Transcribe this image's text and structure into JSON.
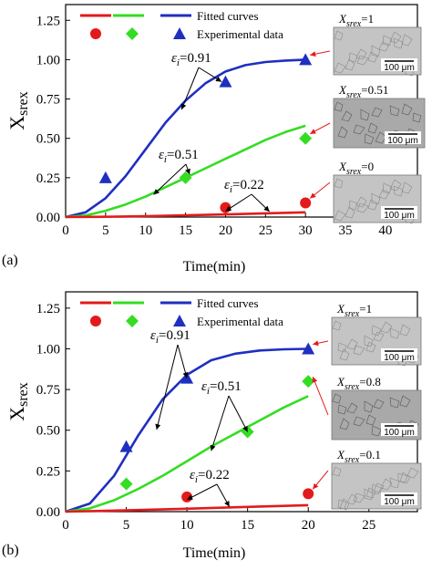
{
  "colors": {
    "low": "#e31a1c",
    "mid": "#33dd22",
    "high": "#1f2fbf",
    "arrow": "#e31a1c"
  },
  "legend": {
    "fitted": "Fitted curves",
    "experimental": "Experimental data"
  },
  "chart_data": [
    {
      "type": "line",
      "panel": "(a)",
      "xlabel": "Time(min)",
      "ylabel": "Xsrex",
      "xlim": [
        0,
        44
      ],
      "ylim": [
        0,
        1.35
      ],
      "xticks": [
        0,
        5,
        10,
        15,
        20,
        25,
        30,
        35,
        40
      ],
      "yticks": [
        0.0,
        0.25,
        0.5,
        0.75,
        1.0,
        1.25
      ],
      "curve_end": 30,
      "series": [
        {
          "key": "high",
          "strain": "εi=0.91",
          "color": "#1f2fbf",
          "marker": "triangle",
          "fit": {
            "x": [
              0,
              2.5,
              5,
              7.5,
              10,
              12.5,
              15,
              17.5,
              20,
              22.5,
              25,
              27.5,
              30
            ],
            "y": [
              0,
              0.03,
              0.12,
              0.26,
              0.43,
              0.6,
              0.74,
              0.85,
              0.925,
              0.965,
              0.985,
              0.994,
              1.0
            ]
          },
          "points": [
            {
              "x": 5,
              "y": 0.25
            },
            {
              "x": 20,
              "y": 0.86
            },
            {
              "x": 30,
              "y": 1.0
            }
          ]
        },
        {
          "key": "mid",
          "strain": "εi=0.51",
          "color": "#33dd22",
          "marker": "diamond",
          "fit": {
            "x": [
              0,
              2.5,
              5,
              7.5,
              10,
              12.5,
              15,
              17.5,
              20,
              22.5,
              25,
              27.5,
              30
            ],
            "y": [
              0,
              0.01,
              0.04,
              0.08,
              0.13,
              0.19,
              0.25,
              0.31,
              0.37,
              0.43,
              0.49,
              0.54,
              0.58
            ]
          },
          "points": [
            {
              "x": 15,
              "y": 0.25
            },
            {
              "x": 30,
              "y": 0.5
            }
          ]
        },
        {
          "key": "low",
          "strain": "εi=0.22",
          "color": "#e31a1c",
          "marker": "circle",
          "fit": {
            "x": [
              0,
              5,
              10,
              15,
              20,
              25,
              30
            ],
            "y": [
              0,
              0.002,
              0.006,
              0.011,
              0.017,
              0.024,
              0.03
            ]
          },
          "points": [
            {
              "x": 20,
              "y": 0.06
            },
            {
              "x": 30,
              "y": 0.09
            }
          ]
        }
      ],
      "micrographs": [
        {
          "label": "Xsrex=1",
          "scale": "100 μm"
        },
        {
          "label": "Xsrex=0.51",
          "scale": "100 μm"
        },
        {
          "label": "Xsrex=0",
          "scale": "100 μm"
        }
      ]
    },
    {
      "type": "line",
      "panel": "(b)",
      "xlabel": "Time(min)",
      "ylabel": "Xsrex",
      "xlim": [
        0,
        29
      ],
      "ylim": [
        0,
        1.35
      ],
      "xticks": [
        0,
        5,
        10,
        15,
        20,
        25
      ],
      "yticks": [
        0.0,
        0.25,
        0.5,
        0.75,
        1.0,
        1.25
      ],
      "curve_end": 20,
      "series": [
        {
          "key": "high",
          "strain": "εi=0.91",
          "color": "#1f2fbf",
          "marker": "triangle",
          "fit": {
            "x": [
              0,
              2,
              4,
              6,
              8,
              10,
              12,
              14,
              16,
              18,
              20
            ],
            "y": [
              0,
              0.05,
              0.22,
              0.47,
              0.69,
              0.84,
              0.93,
              0.97,
              0.99,
              0.997,
              1.0
            ]
          },
          "points": [
            {
              "x": 5,
              "y": 0.4
            },
            {
              "x": 10,
              "y": 0.82
            },
            {
              "x": 20,
              "y": 1.0
            }
          ]
        },
        {
          "key": "mid",
          "strain": "εi=0.51",
          "color": "#33dd22",
          "marker": "diamond",
          "fit": {
            "x": [
              0,
              2,
              4,
              6,
              8,
              10,
              12,
              14,
              16,
              18,
              20
            ],
            "y": [
              0,
              0.02,
              0.07,
              0.14,
              0.22,
              0.31,
              0.4,
              0.48,
              0.56,
              0.64,
              0.71
            ]
          },
          "points": [
            {
              "x": 5,
              "y": 0.17
            },
            {
              "x": 15,
              "y": 0.49
            },
            {
              "x": 20,
              "y": 0.8
            }
          ]
        },
        {
          "key": "low",
          "strain": "εi=0.22",
          "color": "#e31a1c",
          "marker": "circle",
          "fit": {
            "x": [
              0,
              5,
              10,
              15,
              20
            ],
            "y": [
              0,
              0.008,
              0.018,
              0.029,
              0.04
            ]
          },
          "points": [
            {
              "x": 10,
              "y": 0.09
            },
            {
              "x": 20,
              "y": 0.11
            }
          ]
        }
      ],
      "micrographs": [
        {
          "label": "Xsrex=1",
          "scale": "100 μm"
        },
        {
          "label": "Xsrex=0.8",
          "scale": "100 μm"
        },
        {
          "label": "Xsrex=0.1",
          "scale": "100 μm"
        }
      ]
    }
  ]
}
